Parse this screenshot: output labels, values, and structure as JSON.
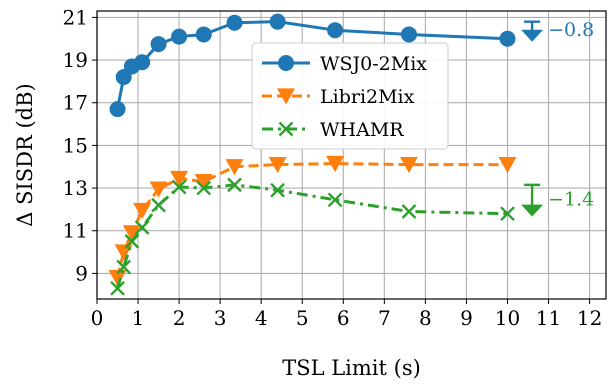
{
  "chart_data": {
    "type": "line",
    "xlabel": "TSL Limit (s)",
    "ylabel": "Δ SISDR (dB)",
    "xlim": [
      0,
      12.4
    ],
    "ylim": [
      7.8,
      21.3
    ],
    "xticks": [
      "0",
      "1",
      "2",
      "3",
      "4",
      "5",
      "6",
      "7",
      "8",
      "9",
      "10",
      "11",
      "12"
    ],
    "yticks": [
      "9",
      "11",
      "13",
      "15",
      "17",
      "19",
      "21"
    ],
    "grid": true,
    "legend_position": "top-center",
    "series": [
      {
        "name": "WSJ0-2Mix",
        "color": "#1f77b4",
        "marker": "circle",
        "line_style": "solid",
        "x": [
          0.5,
          0.65,
          0.85,
          1.1,
          1.5,
          2.0,
          2.6,
          3.35,
          4.4,
          5.8,
          7.6,
          10.0
        ],
        "y": [
          16.7,
          18.2,
          18.7,
          18.9,
          19.75,
          20.1,
          20.2,
          20.75,
          20.8,
          20.4,
          20.2,
          20.0
        ]
      },
      {
        "name": "Libri2Mix",
        "color": "#ff7f0e",
        "marker": "triangle-down",
        "line_style": "dashed",
        "x": [
          0.5,
          0.65,
          0.85,
          1.1,
          1.5,
          2.0,
          2.6,
          3.35,
          4.4,
          5.8,
          7.6,
          10.0
        ],
        "y": [
          8.8,
          10.0,
          10.9,
          11.95,
          12.95,
          13.45,
          13.3,
          14.0,
          14.1,
          14.15,
          14.1,
          14.1
        ]
      },
      {
        "name": "WHAMR",
        "color": "#2ca02c",
        "marker": "x",
        "line_style": "dashdot",
        "x": [
          0.5,
          0.65,
          0.85,
          1.1,
          1.5,
          2.0,
          2.6,
          3.35,
          4.4,
          5.8,
          7.6,
          10.0
        ],
        "y": [
          8.3,
          9.3,
          10.5,
          11.15,
          12.2,
          13.05,
          13.0,
          13.15,
          12.9,
          12.45,
          11.9,
          11.8
        ]
      }
    ],
    "annotations": [
      {
        "text": "−0.8",
        "color": "#1f77b4",
        "x": 10.6,
        "y_from": 20.8,
        "y_to": 20.0
      },
      {
        "text": "−1.4",
        "color": "#2ca02c",
        "x": 10.6,
        "y_from": 13.15,
        "y_to": 11.8
      }
    ]
  }
}
